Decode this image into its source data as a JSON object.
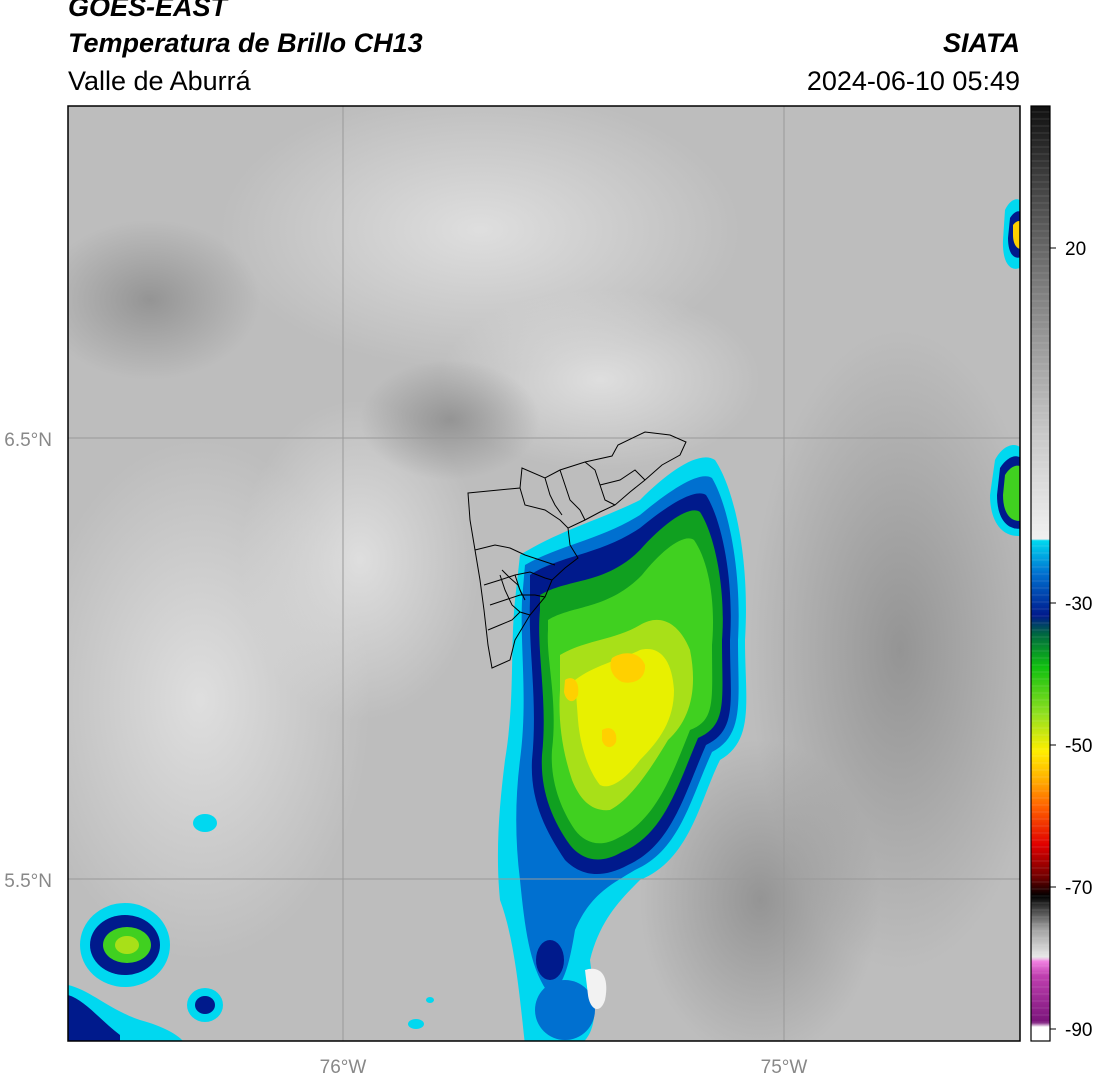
{
  "header": {
    "satellite": "GOES-EAST",
    "product": "Temperatura de Brillo CH13",
    "region": "Valle de Aburrá",
    "organization": "SIATA",
    "datetime": "2024-06-10 05:49"
  },
  "map": {
    "lat_labels": [
      "6.5°N",
      "5.5°N"
    ],
    "lon_labels": [
      "76°W",
      "75°W"
    ],
    "background_gray": "#bdbdbd"
  },
  "colorbar": {
    "tick_labels": [
      "20",
      "-30",
      "-50",
      "-70",
      "-90"
    ],
    "colors": {
      "cyan": "#00d8f0",
      "dark_blue": "#001a8c",
      "green": "#1fd41f",
      "yellow": "#ffee00",
      "orange": "#ff9000",
      "red": "#e00000",
      "black": "#000000",
      "magenta": "#d050c0",
      "purple": "#8a1a8a"
    }
  }
}
